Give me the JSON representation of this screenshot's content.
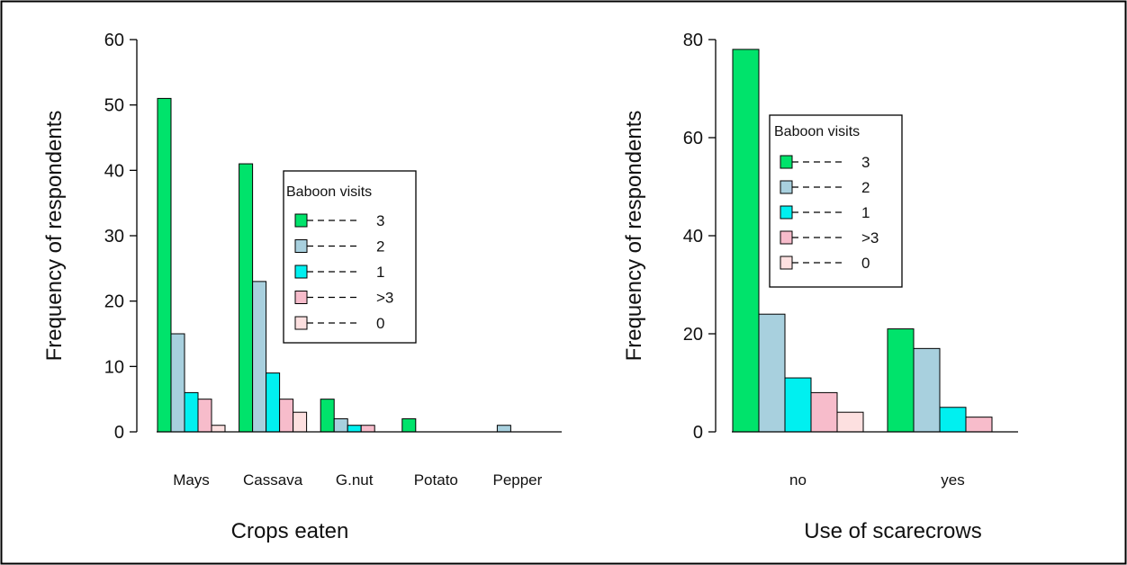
{
  "chart_data": [
    {
      "type": "bar",
      "xlabel": "Crops eaten",
      "ylabel": "Frequency of respondents",
      "ylim": [
        0,
        60
      ],
      "yticks": [
        0,
        10,
        20,
        30,
        40,
        50,
        60
      ],
      "categories": [
        "Mays",
        "Cassava",
        "G.nut",
        "Potato",
        "Pepper"
      ],
      "legend": {
        "title": "Baboon visits",
        "position": "center-right"
      },
      "series": [
        {
          "name": "3",
          "color": "#00e36b",
          "values": [
            51,
            41,
            5,
            2,
            0
          ]
        },
        {
          "name": "2",
          "color": "#a8d0de",
          "values": [
            15,
            23,
            2,
            0,
            1
          ]
        },
        {
          "name": "1",
          "color": "#00f0f0",
          "values": [
            6,
            9,
            1,
            0,
            0
          ]
        },
        {
          "name": ">3",
          "color": "#f7bccb",
          "values": [
            5,
            5,
            1,
            0,
            0
          ]
        },
        {
          "name": "0",
          "color": "#fde0e0",
          "values": [
            1,
            3,
            0,
            0,
            0
          ]
        }
      ]
    },
    {
      "type": "bar",
      "xlabel": "Use of scarecrows",
      "ylabel": "Frequency of respondents",
      "ylim": [
        0,
        80
      ],
      "yticks": [
        0,
        20,
        40,
        60,
        80
      ],
      "categories": [
        "no",
        "yes"
      ],
      "legend": {
        "title": "Baboon visits",
        "position": "top-center"
      },
      "series": [
        {
          "name": "3",
          "color": "#00e36b",
          "values": [
            78,
            21
          ]
        },
        {
          "name": "2",
          "color": "#a8d0de",
          "values": [
            24,
            17
          ]
        },
        {
          "name": "1",
          "color": "#00f0f0",
          "values": [
            11,
            5
          ]
        },
        {
          "name": ">3",
          "color": "#f7bccb",
          "values": [
            8,
            3
          ]
        },
        {
          "name": "0",
          "color": "#fde0e0",
          "values": [
            4,
            0
          ]
        }
      ]
    }
  ]
}
